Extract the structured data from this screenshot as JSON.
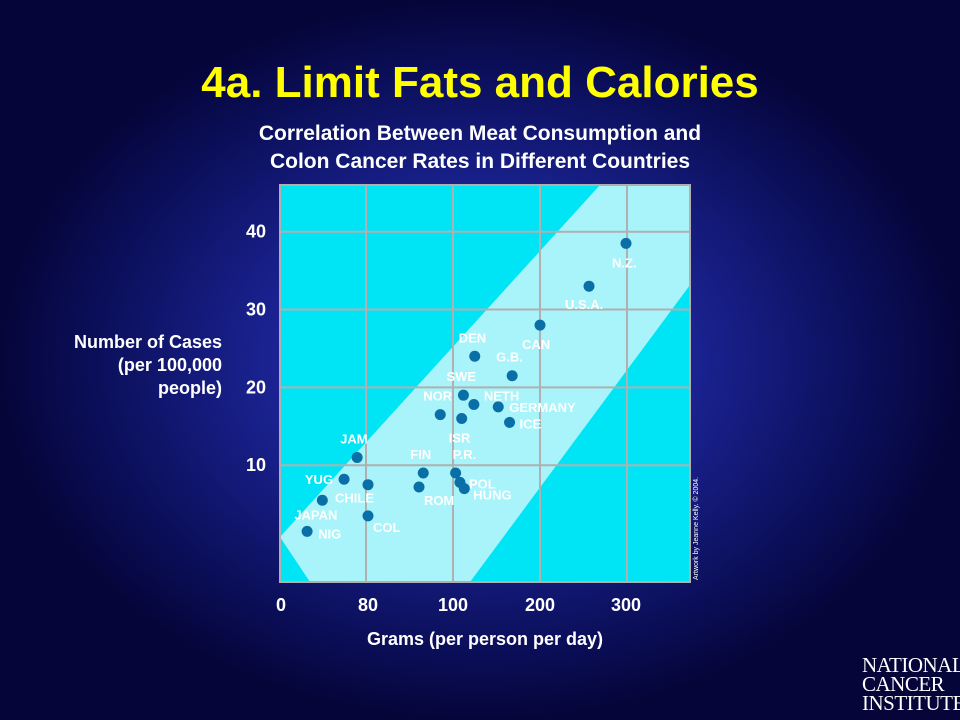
{
  "slide": {
    "title": "4a. Limit Fats and Calories",
    "subtitle_line1": "Correlation Between Meat Consumption and",
    "subtitle_line2": "Colon Cancer Rates in Different Countries",
    "credit": "Artwork by Jeanne Kelly. © 2004.",
    "logo_lines": [
      "NATIONAL",
      "CANCER",
      "INSTITUTE"
    ]
  },
  "colors": {
    "background": "#1a2290",
    "title": "#ffff00",
    "text": "#ffffff",
    "plot_area": "#00e5f5",
    "trend_band": "#a8f4fa",
    "grid": "#b0b0b0",
    "points": "#0a6fa6"
  },
  "chart_data": {
    "type": "scatter",
    "title": "Correlation Between Meat Consumption and Colon Cancer Rates in Different Countries",
    "xlabel": "Grams (per person per day)",
    "ylabel_lines": [
      "Number of Cases",
      "(per 100,000",
      "people)"
    ],
    "x_ticks": [
      "0",
      "80",
      "100",
      "200",
      "300"
    ],
    "y_ticks": [
      10,
      20,
      30,
      40
    ],
    "ylim": [
      -5,
      46
    ],
    "grid": true,
    "points": [
      {
        "label": "N.Z.",
        "x": 300,
        "y": 38.5
      },
      {
        "label": "U.S.A.",
        "x": 257,
        "y": 33
      },
      {
        "label": "CAN",
        "x": 200,
        "y": 28
      },
      {
        "label": "DEN",
        "x": 125,
        "y": 24
      },
      {
        "label": "G.B.",
        "x": 168,
        "y": 21.5
      },
      {
        "label": "SWE",
        "x": 112,
        "y": 19
      },
      {
        "label": "NETH",
        "x": 124,
        "y": 17.8
      },
      {
        "label": "NOR",
        "x": 97,
        "y": 16.5
      },
      {
        "label": "ISR",
        "x": 110,
        "y": 16
      },
      {
        "label": "GERMANY",
        "x": 152,
        "y": 17.5
      },
      {
        "label": "ICE",
        "x": 165,
        "y": 15.5
      },
      {
        "label": "JAM",
        "x": 70,
        "y": 11
      },
      {
        "label": "FIN",
        "x": 93,
        "y": 9
      },
      {
        "label": "P.R.",
        "x": 103,
        "y": 9
      },
      {
        "label": "YUG",
        "x": 58,
        "y": 8.2
      },
      {
        "label": "POL",
        "x": 108,
        "y": 7.8
      },
      {
        "label": "HUNG",
        "x": 113,
        "y": 7
      },
      {
        "label": "ROM",
        "x": 92,
        "y": 7.2
      },
      {
        "label": "CHILE",
        "x": 80,
        "y": 7.5
      },
      {
        "label": "JAPAN",
        "x": 38,
        "y": 5.5
      },
      {
        "label": "COL",
        "x": 80,
        "y": 3.5
      },
      {
        "label": "NIG",
        "x": 24,
        "y": 1.5
      }
    ]
  }
}
